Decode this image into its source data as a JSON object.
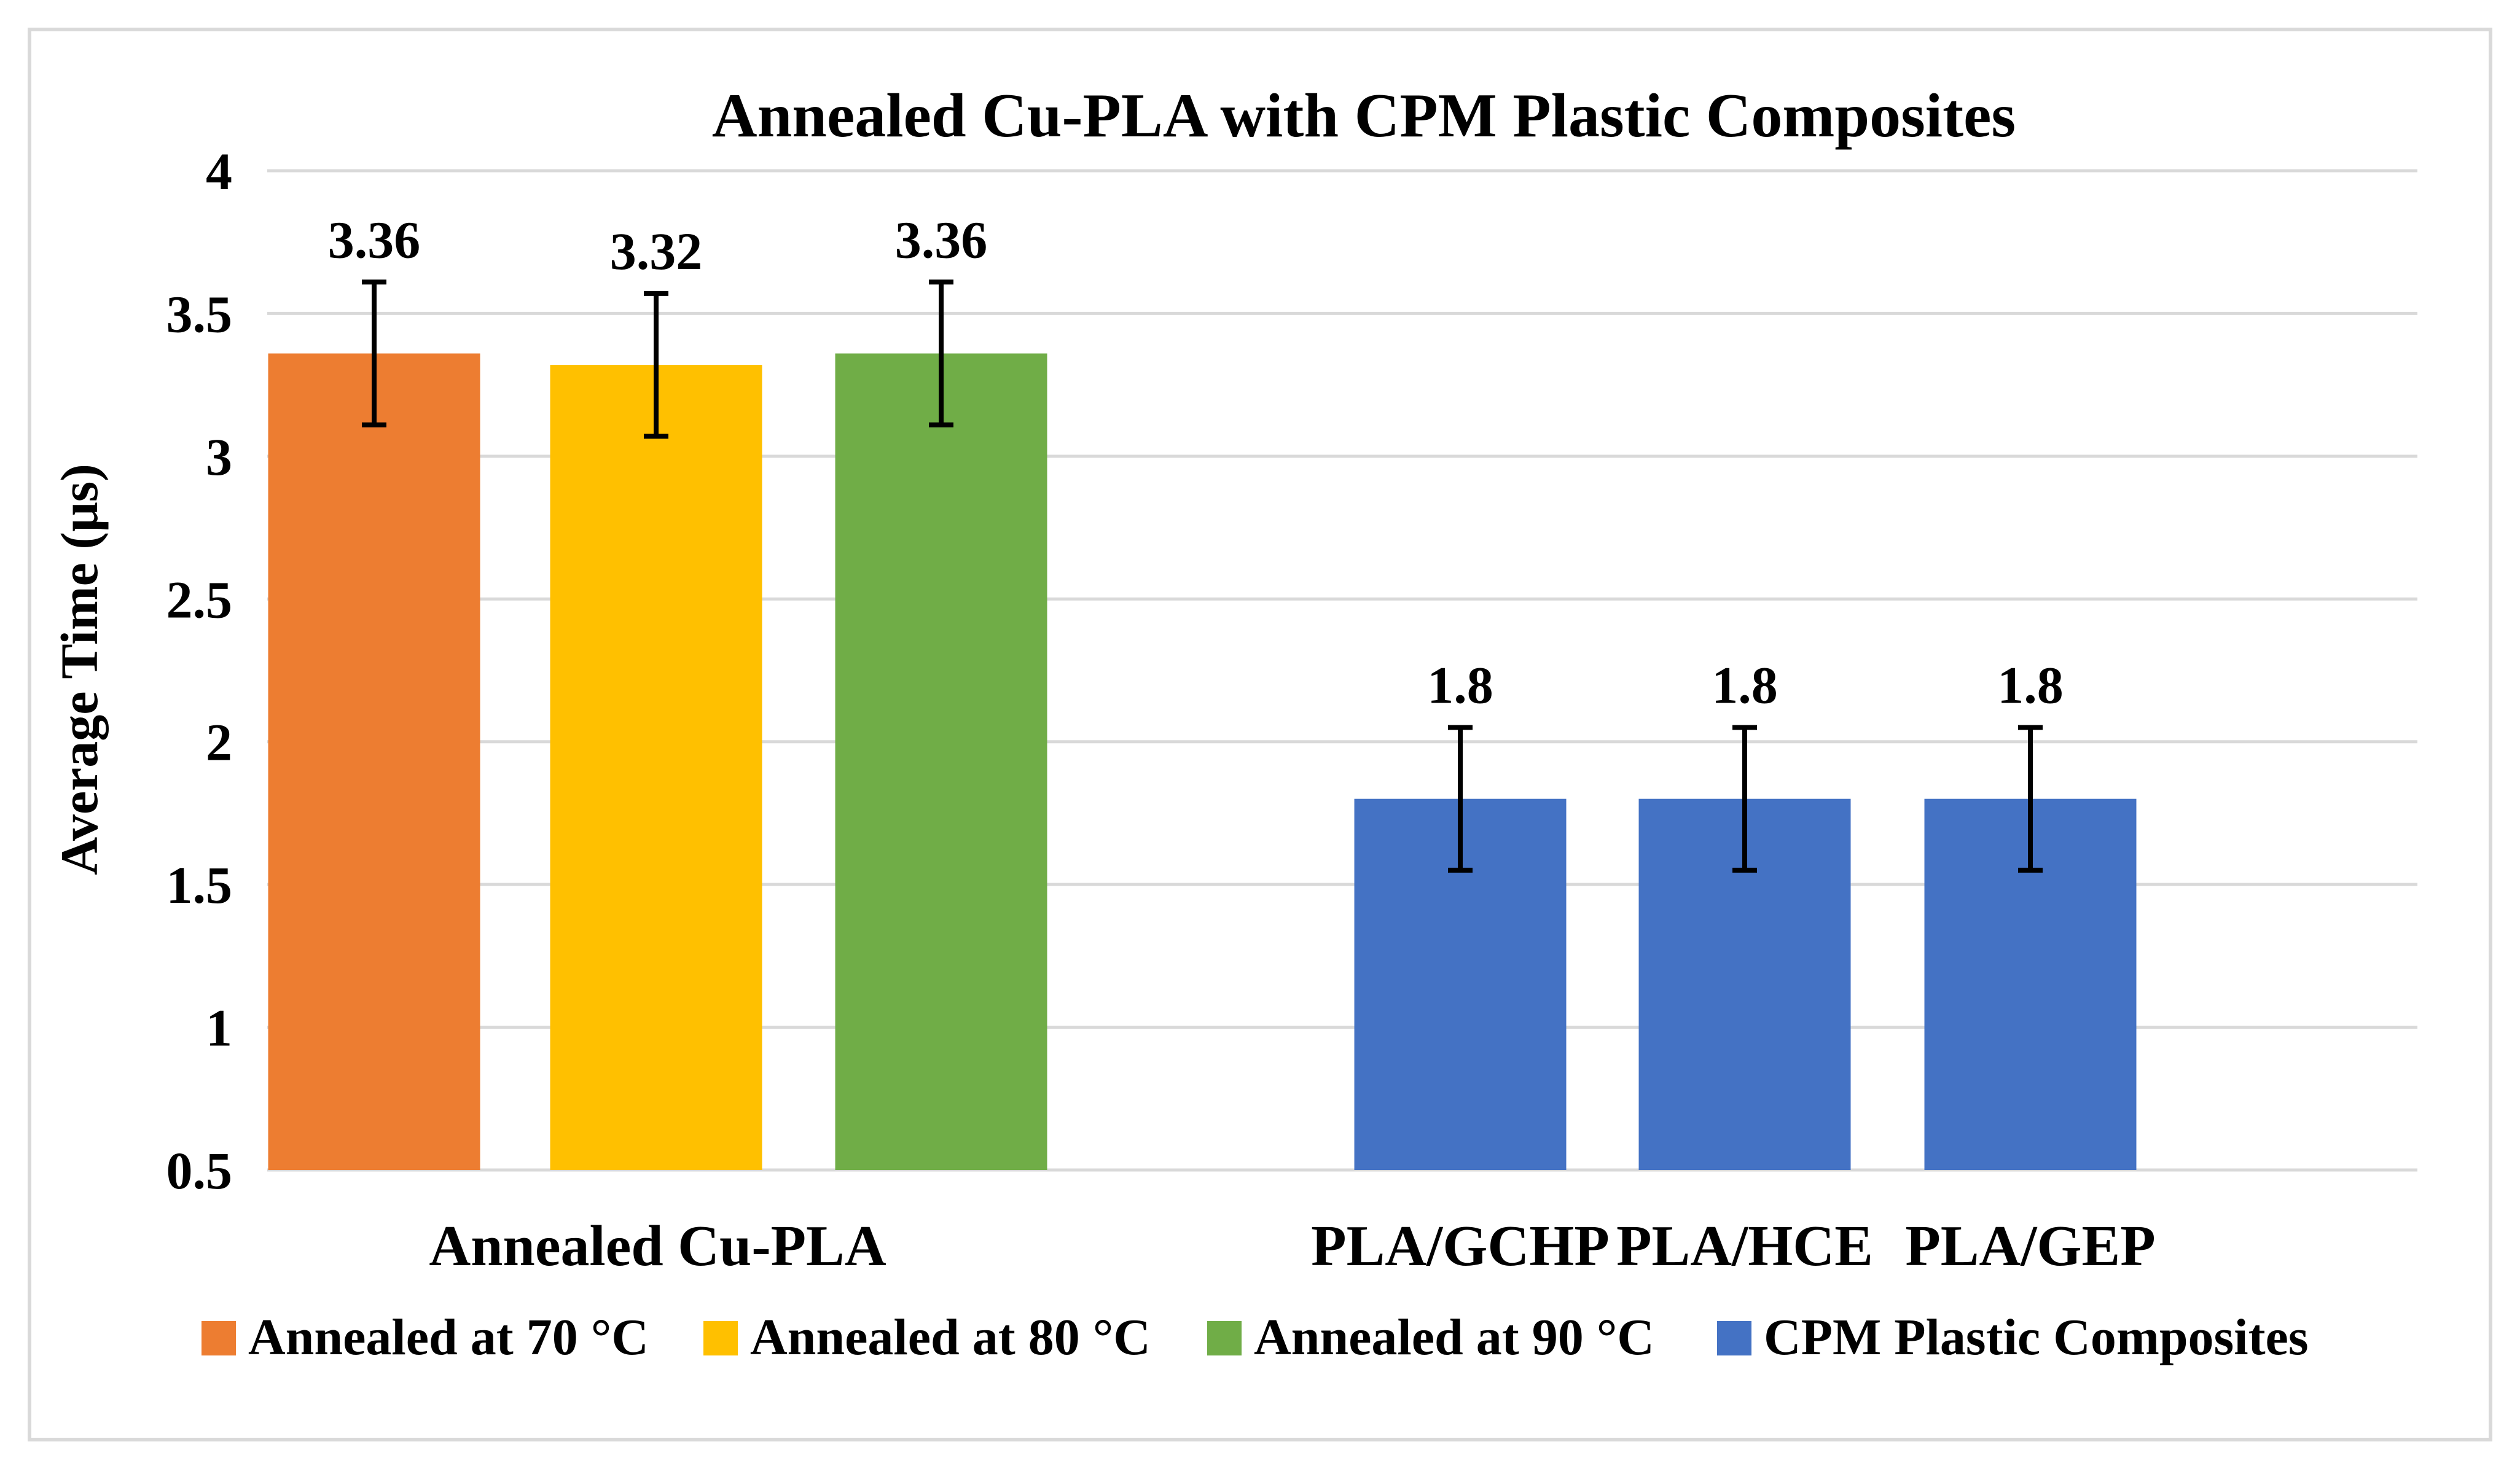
{
  "chart_data": {
    "type": "bar",
    "title": "Annealed Cu-PLA with CPM Plastic Composites",
    "xlabel": "",
    "ylabel": "Average Time (μs)",
    "ylim": [
      0.5,
      4
    ],
    "yticks": [
      "0.5",
      "1",
      "1.5",
      "2",
      "2.5",
      "3",
      "3.5",
      "4"
    ],
    "grid": true,
    "legend_position": "bottom",
    "groups": [
      {
        "label": "Annealed Cu-PLA",
        "bars": [
          0,
          1,
          2
        ]
      },
      {
        "label": "",
        "bars": [
          3,
          4,
          5
        ]
      }
    ],
    "bars": [
      {
        "category": "",
        "series": "Annealed at 70 °C",
        "value": 3.36,
        "label": "3.36",
        "error": 0.25,
        "color": "#ED7D31"
      },
      {
        "category": "",
        "series": "Annealed at 80 °C",
        "value": 3.32,
        "label": "3.32",
        "error": 0.25,
        "color": "#FFC000"
      },
      {
        "category": "",
        "series": "Annealed at 90 °C",
        "value": 3.36,
        "label": "3.36",
        "error": 0.25,
        "color": "#70AD47"
      },
      {
        "category": "PLA/GCHP",
        "series": "CPM Plastic Composites",
        "value": 1.8,
        "label": "1.8",
        "error": 0.25,
        "color": "#4472C4"
      },
      {
        "category": "PLA/HCE",
        "series": "CPM Plastic Composites",
        "value": 1.8,
        "label": "1.8",
        "error": 0.25,
        "color": "#4472C4"
      },
      {
        "category": "PLA/GEP",
        "series": "CPM Plastic Composites",
        "value": 1.8,
        "label": "1.8",
        "error": 0.25,
        "color": "#4472C4"
      }
    ],
    "legend": [
      {
        "name": "Annealed at 70 °C",
        "color": "#ED7D31"
      },
      {
        "name": "Annealed at 80 °C",
        "color": "#FFC000"
      },
      {
        "name": "Annealed at 90 °C",
        "color": "#70AD47"
      },
      {
        "name": "CPM Plastic Composites",
        "color": "#4472C4"
      }
    ]
  }
}
